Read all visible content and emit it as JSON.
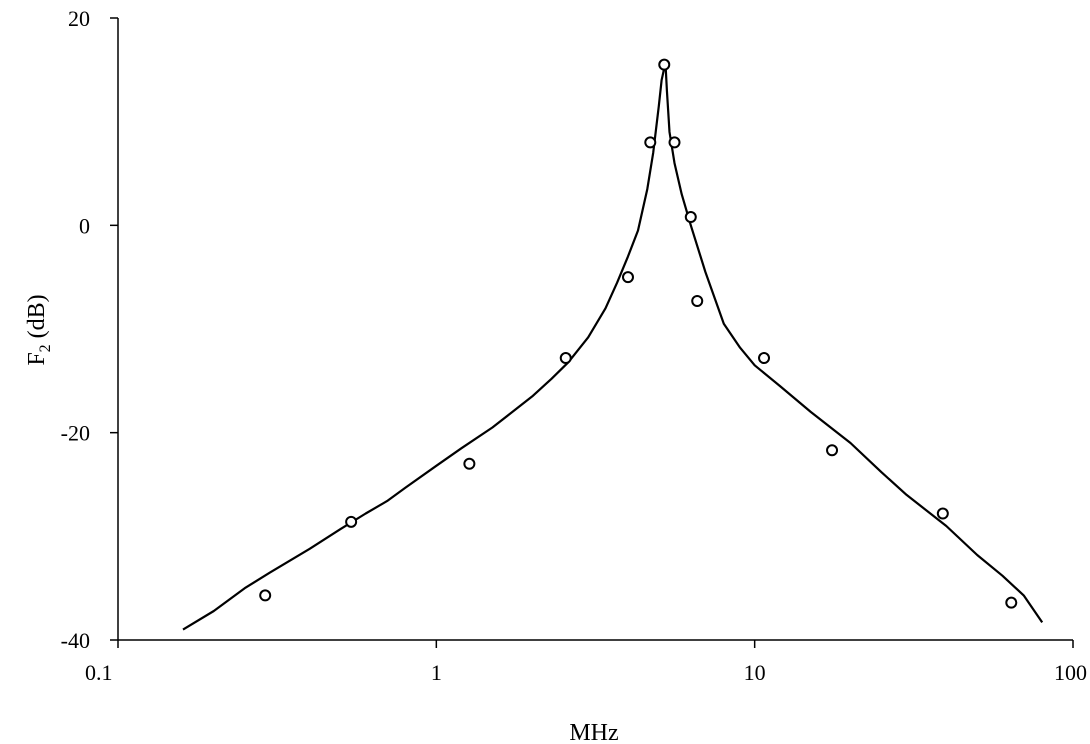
{
  "chart_data": {
    "type": "scatter",
    "title": "",
    "xlabel": "MHz",
    "ylabel": {
      "main": "F",
      "subscript": "2",
      "unit": " (dB)"
    },
    "xscale": "log",
    "xlim": [
      0.1,
      100
    ],
    "ylim": [
      -40,
      20
    ],
    "x_ticks": [
      0.1,
      1,
      10,
      100
    ],
    "x_tick_labels": [
      "0.1",
      "1",
      "10",
      "100"
    ],
    "y_ticks": [
      20,
      0,
      -20,
      -40
    ],
    "y_tick_labels": [
      "20",
      "0",
      "-20",
      "-40"
    ],
    "grid": false,
    "legend": "none",
    "series": [
      {
        "kind": "line",
        "x": [
          0.16,
          0.2,
          0.25,
          0.3,
          0.4,
          0.5,
          0.6,
          0.7,
          0.8,
          1,
          1.2,
          1.5,
          1.7,
          2,
          2.3,
          2.6,
          3,
          3.4,
          3.7,
          4,
          4.3,
          4.6,
          4.8,
          5,
          5.1,
          5.2,
          5.25,
          5.3,
          5.4,
          5.6,
          5.9,
          6.3,
          7,
          8,
          9,
          10,
          12,
          15,
          20,
          25,
          30,
          40,
          50,
          60,
          70,
          80
        ],
        "y": [
          -39,
          -37.2,
          -35,
          -33.5,
          -31.2,
          -29.3,
          -27.8,
          -26.6,
          -25.3,
          -23.2,
          -21.5,
          -19.5,
          -18.2,
          -16.5,
          -14.8,
          -13.2,
          -10.8,
          -8,
          -5.5,
          -3,
          -0.5,
          3.5,
          7,
          11.5,
          14,
          15.2,
          15.4,
          13,
          9,
          6,
          3,
          0,
          -4.5,
          -9.5,
          -11.8,
          -13.5,
          -15.5,
          -18,
          -21,
          -23.8,
          -26,
          -29,
          -31.8,
          -33.8,
          -35.7,
          -38.3
        ]
      },
      {
        "kind": "markers",
        "x": [
          0.29,
          0.54,
          1.27,
          2.55,
          4.0,
          4.7,
          5.2,
          5.6,
          6.3,
          6.6,
          10.7,
          17.5,
          39,
          64
        ],
        "y": [
          -35.7,
          -28.6,
          -23,
          -12.8,
          -5,
          8,
          15.5,
          8,
          0.8,
          -7.3,
          -12.8,
          -21.7,
          -27.8,
          -36.4
        ]
      }
    ]
  }
}
